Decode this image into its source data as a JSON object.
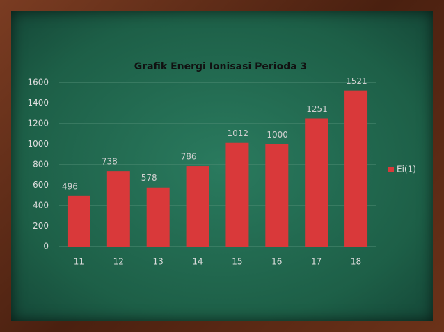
{
  "chart_data": {
    "type": "bar",
    "title": "Grafik Energi Ionisasi Perioda 3",
    "categories": [
      "11",
      "12",
      "13",
      "14",
      "15",
      "16",
      "17",
      "18"
    ],
    "series": [
      {
        "name": "Ei(1)",
        "color": "#d9393a",
        "values": [
          496,
          738,
          578,
          786,
          1012,
          1000,
          1251,
          1521
        ]
      }
    ],
    "ylim": [
      0,
      1600
    ],
    "yticks": [
      0,
      200,
      400,
      600,
      800,
      1000,
      1200,
      1400,
      1600
    ],
    "grid": true,
    "legend": "right"
  }
}
